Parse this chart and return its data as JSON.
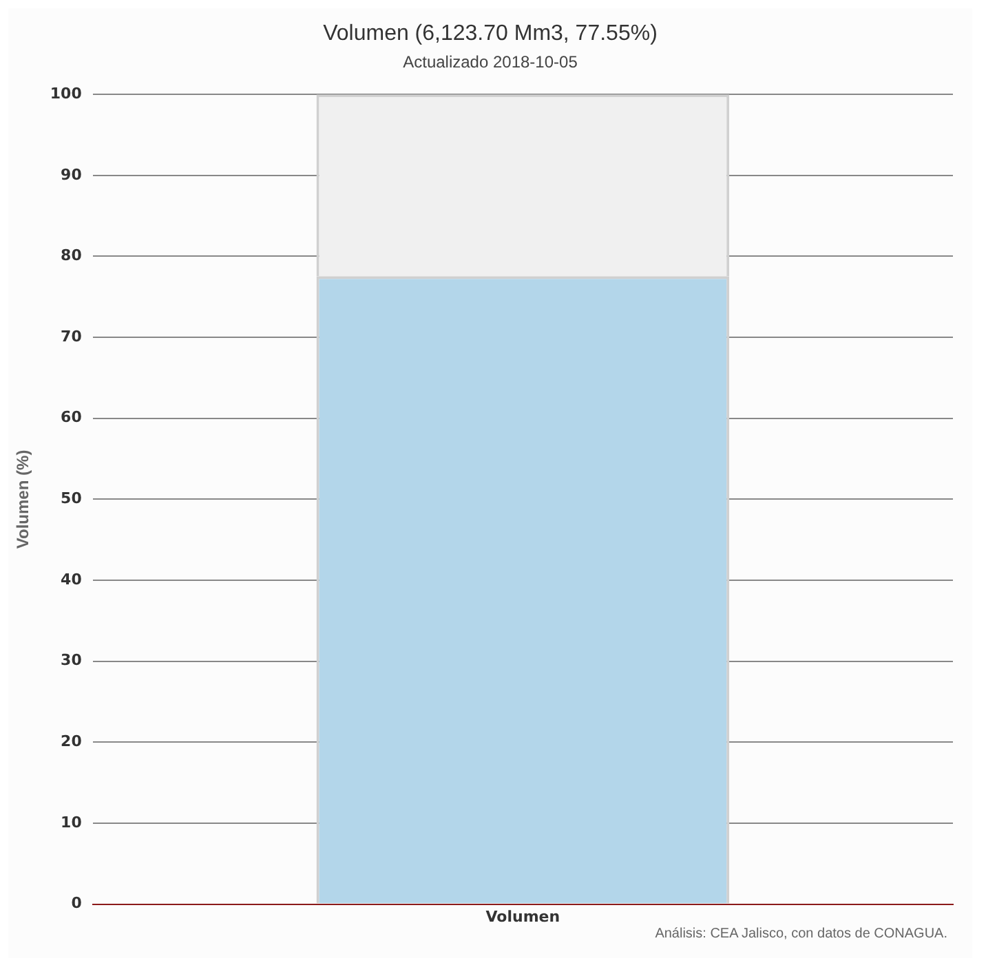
{
  "chart_data": {
    "type": "bar",
    "title": "Volumen (6,123.70 Mm3, 77.55%)",
    "subtitle": "Actualizado 2018-10-05",
    "ylabel": "Volumen (%)",
    "categories": [
      "Volumen"
    ],
    "stacked": true,
    "series": [
      {
        "color": "#b3d6ea",
        "values": [
          77.55
        ]
      },
      {
        "color": "#f0f0f0",
        "values": [
          22.45
        ]
      }
    ],
    "ylim": [
      0,
      100
    ],
    "yticks": [
      0,
      10,
      20,
      30,
      40,
      50,
      60,
      70,
      80,
      90,
      100
    ],
    "grid": "y",
    "legend": false,
    "annotations": [
      "Análisis: CEA Jalisco, con datos de CONAGUA."
    ]
  }
}
